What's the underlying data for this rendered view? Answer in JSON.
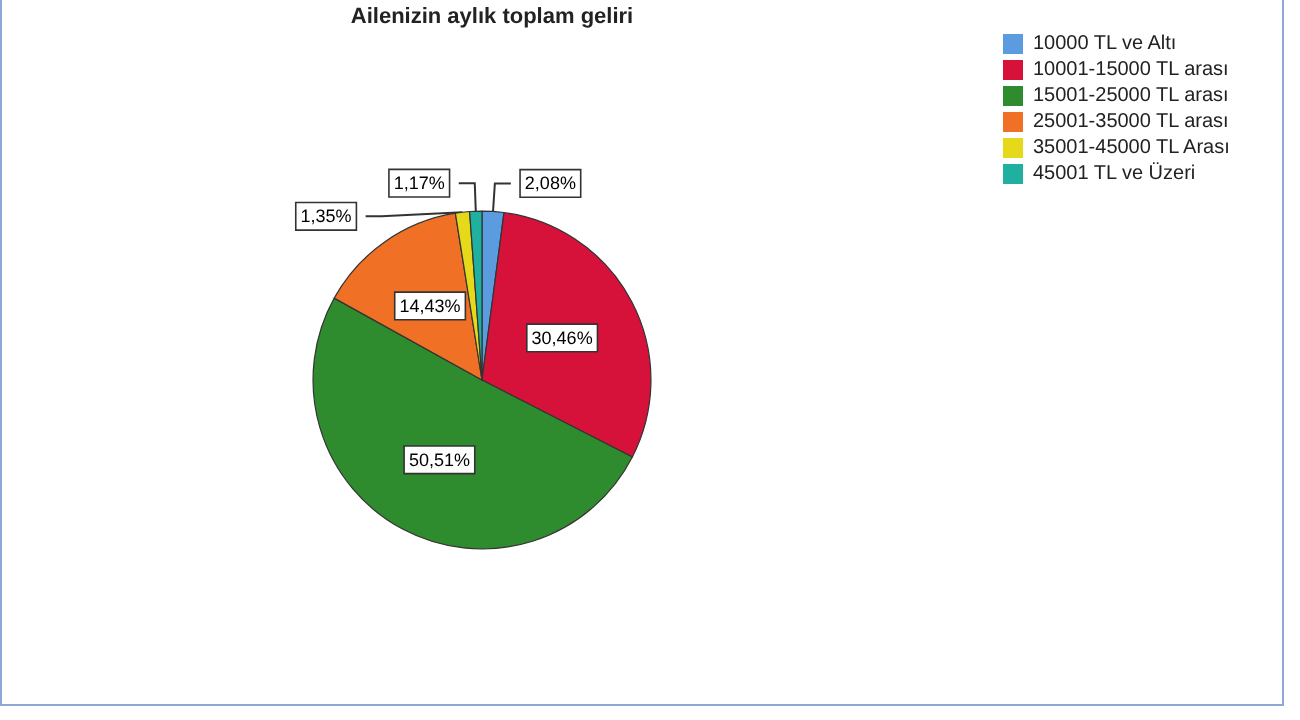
{
  "chart_data": {
    "type": "pie",
    "title": "Ailenizin aylık toplam geliri",
    "categories": [
      "10000 TL ve Altı",
      "10001-15000 TL arası",
      "15001-25000 TL arası",
      "25001-35000 TL arası",
      "35001-45000 TL Arası",
      "45001 TL ve Üzeri"
    ],
    "values": [
      2.08,
      30.46,
      50.51,
      14.43,
      1.35,
      1.17
    ],
    "value_labels": [
      "2,08%",
      "30,46%",
      "50,51%",
      "14,43%",
      "1,35%",
      "1,17%"
    ],
    "colors": [
      "#5b9be0",
      "#d7123a",
      "#2e8b2e",
      "#f07025",
      "#e6d91a",
      "#1fb0a0"
    ],
    "legend": "top right"
  }
}
